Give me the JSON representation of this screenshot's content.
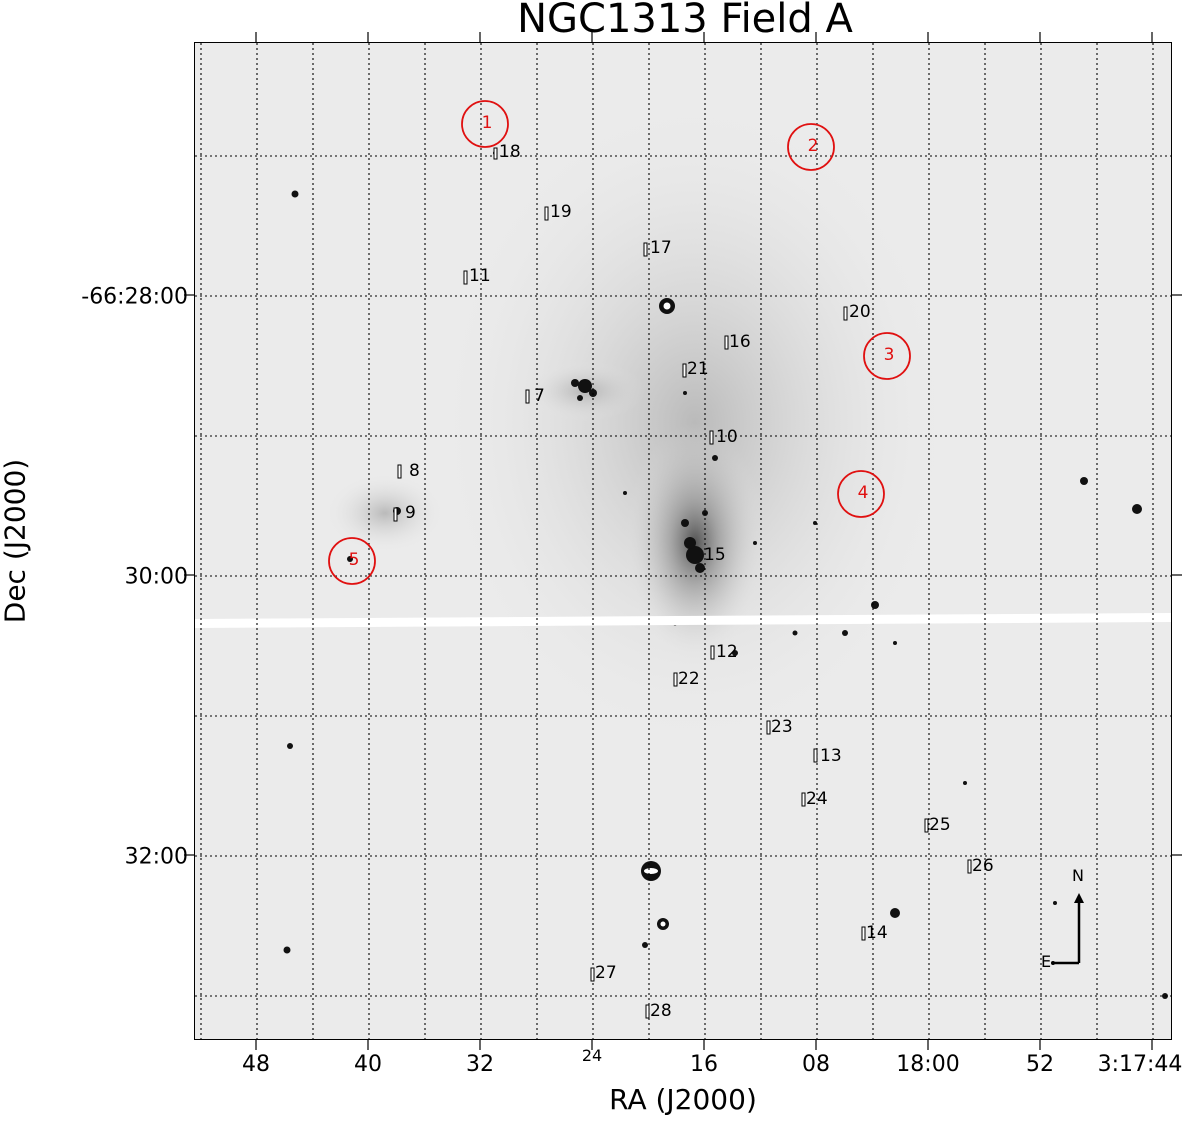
{
  "title": "NGC1313 Field A",
  "xlabel": "RA (J2000)",
  "ylabel": "Dec (J2000)",
  "ra_ticks": [
    "48",
    "40",
    "32",
    "24",
    "16",
    "08",
    "18:00",
    "52",
    "3:17:44"
  ],
  "dec_ticks": [
    "-66:28:00",
    "30:00",
    "32:00"
  ],
  "compass": {
    "north": "N",
    "east": "E"
  },
  "red_circles": [
    "1",
    "2",
    "3",
    "4",
    "5"
  ],
  "sources": [
    "7",
    "8",
    "9",
    "10",
    "11",
    "12",
    "13",
    "14",
    "15",
    "16",
    "17",
    "18",
    "19",
    "20",
    "21",
    "22",
    "23",
    "24",
    "25",
    "26",
    "27",
    "28"
  ],
  "colors": {
    "circles": "#e01010",
    "background": "#ebebeb",
    "grid": "#000000"
  }
}
